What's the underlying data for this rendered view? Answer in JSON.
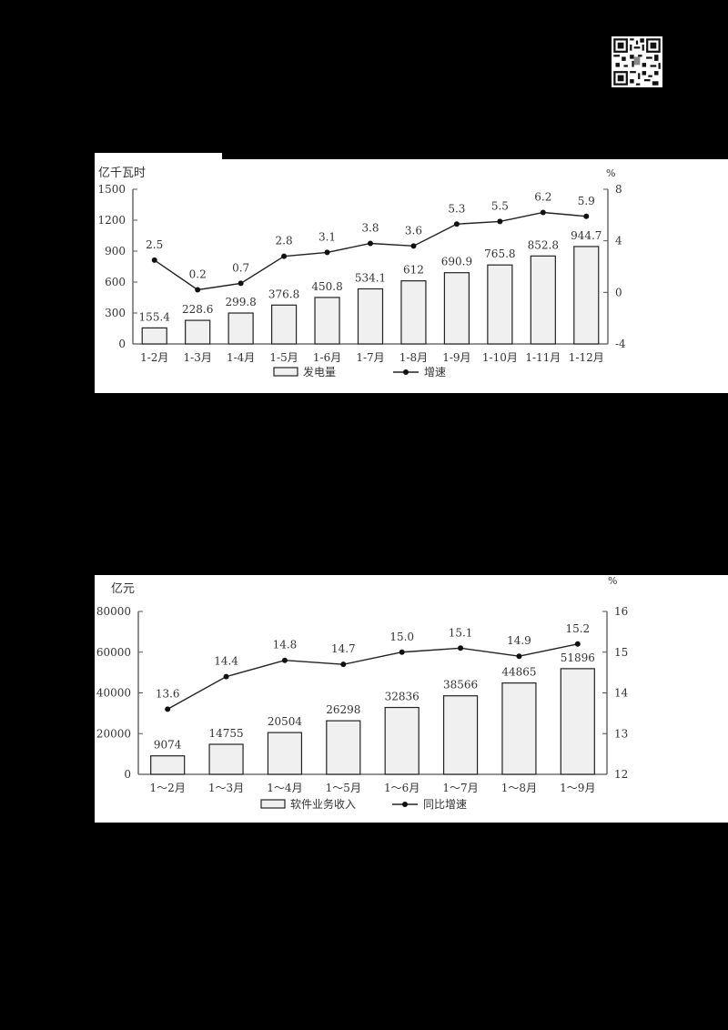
{
  "qr_code": {
    "icon": "qr-code-icon"
  },
  "chart_data": [
    {
      "type": "bar",
      "title": "",
      "xlabel": "",
      "ylabel": "亿千瓦时",
      "ylabel_right": "%",
      "categories": [
        "1-2月",
        "1-3月",
        "1-4月",
        "1-5月",
        "1-6月",
        "1-7月",
        "1-8月",
        "1-9月",
        "1-10月",
        "1-11月",
        "1-12月"
      ],
      "series": [
        {
          "name": "发电量",
          "type": "bar",
          "axis": "left",
          "values": [
            155.4,
            228.6,
            299.8,
            376.8,
            450.8,
            534.1,
            612,
            690.9,
            765.8,
            852.8,
            944.7
          ],
          "labels": [
            "155.4",
            "228.6",
            "299.8",
            "376.8",
            "450.8",
            "534.1",
            "612",
            "690.9",
            "765.8",
            "852.8",
            "944.7"
          ]
        },
        {
          "name": "增速",
          "type": "line",
          "axis": "right",
          "values": [
            2.5,
            0.2,
            0.7,
            2.8,
            3.1,
            3.8,
            3.6,
            5.3,
            5.5,
            6.2,
            5.9
          ],
          "labels": [
            "2.5",
            "0.2",
            "0.7",
            "2.8",
            "3.1",
            "3.8",
            "3.6",
            "5.3",
            "5.5",
            "6.2",
            "5.9"
          ]
        }
      ],
      "ylim": [
        0,
        1500
      ],
      "yticks": [
        "0",
        "300",
        "600",
        "900",
        "1200",
        "1500"
      ],
      "ylim_right": [
        -4,
        8
      ],
      "yticks_right": [
        "-4",
        "0",
        "4",
        "8"
      ],
      "legend": [
        "发电量",
        "增速"
      ],
      "legend_position": "bottom",
      "grid": false
    },
    {
      "type": "bar",
      "title": "",
      "xlabel": "",
      "ylabel": "亿元",
      "ylabel_right": "%",
      "categories": [
        "1～2月",
        "1～3月",
        "1～4月",
        "1～5月",
        "1～6月",
        "1～7月",
        "1～8月",
        "1～9月"
      ],
      "series": [
        {
          "name": "软件业务收入",
          "type": "bar",
          "axis": "left",
          "values": [
            9074,
            14755,
            20504,
            26298,
            32836,
            38566,
            44865,
            51896
          ],
          "labels": [
            "9074",
            "14755",
            "20504",
            "26298",
            "32836",
            "38566",
            "44865",
            "51896"
          ]
        },
        {
          "name": "同比增速",
          "type": "line",
          "axis": "right",
          "values": [
            13.6,
            14.4,
            14.8,
            14.7,
            15.0,
            15.1,
            14.9,
            15.2
          ],
          "labels": [
            "13.6",
            "14.4",
            "14.8",
            "14.7",
            "15.0",
            "15.1",
            "14.9",
            "15.2"
          ]
        }
      ],
      "ylim": [
        0,
        80000
      ],
      "yticks": [
        "0",
        "20000",
        "40000",
        "60000",
        "80000"
      ],
      "ylim_right": [
        12,
        16
      ],
      "yticks_right": [
        "12",
        "13",
        "14",
        "15",
        "16"
      ],
      "legend": [
        "软件业务收入",
        "同比增速"
      ],
      "legend_position": "bottom",
      "grid": false
    }
  ]
}
